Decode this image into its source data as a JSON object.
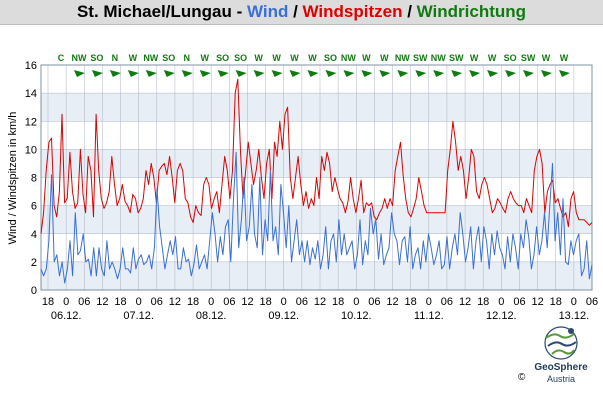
{
  "header": {
    "station": "St. Michael/Lungau",
    "separator": " - ",
    "wind_label": "Wind",
    "slash": " / ",
    "gust_label": "Windspitzen",
    "direction_label": "Windrichtung"
  },
  "colors": {
    "wind": "#3a6fd8",
    "gust": "#e00000",
    "direction": "#127a12",
    "title_text": "#000000",
    "band_light": "#e8eef6",
    "band_white": "#ffffff",
    "grid": "#a8b4c4"
  },
  "chart_data": {
    "type": "line",
    "title": "St. Michael/Lungau - Wind / Windspitzen / Windrichtung",
    "ylabel": "Wind / Windspitzen in km/h",
    "xlabel": "",
    "ylim": [
      0,
      16
    ],
    "yticks": [
      0,
      2,
      4,
      6,
      8,
      10,
      12,
      14,
      16
    ],
    "grid": true,
    "x_hour_ticks": [
      "18",
      "0",
      "06",
      "12",
      "18",
      "0",
      "06",
      "12",
      "18",
      "0",
      "06",
      "12",
      "18",
      "0",
      "06",
      "12",
      "18",
      "0",
      "06",
      "12",
      "18",
      "0",
      "06",
      "12",
      "18",
      "0",
      "06",
      "12",
      "18",
      "0",
      "06"
    ],
    "date_labels": [
      "06.12.",
      "07.12.",
      "08.12.",
      "09.12.",
      "10.12.",
      "11.12.",
      "12.12.",
      "13.12."
    ],
    "wind_directions": [
      "C",
      "NW",
      "SO",
      "N",
      "W",
      "NW",
      "SO",
      "N",
      "W",
      "SO",
      "SO",
      "W",
      "W",
      "W",
      "W",
      "SO",
      "NW",
      "W",
      "W",
      "NW",
      "SW",
      "NW",
      "SW",
      "W",
      "W",
      "SO",
      "SW",
      "W",
      "W"
    ],
    "series": [
      {
        "name": "Windspitzen",
        "values": [
          4,
          5.5,
          8.5,
          10.5,
          10.8,
          6,
          5.2,
          7,
          12.5,
          6.2,
          6.5,
          9.8,
          7,
          5.8,
          6.2,
          10,
          6.8,
          5.5,
          9.5,
          8.5,
          5.2,
          12.5,
          8.5,
          6.5,
          5.8,
          6.2,
          7,
          9.5,
          7.5,
          6,
          6.5,
          7.5,
          6.3,
          6,
          5.5,
          6.8,
          6.5,
          5.5,
          5.8,
          6.5,
          8.5,
          7.5,
          9,
          8,
          6.2,
          8.5,
          8.8,
          9,
          8.2,
          9.5,
          8,
          6.2,
          8.5,
          9,
          8.5,
          6.5,
          6.2,
          5.2,
          4.8,
          6,
          5.5,
          5.3,
          7.5,
          8,
          7.5,
          5.8,
          6.5,
          7,
          5.5,
          7.5,
          9.5,
          8.5,
          6.5,
          8.5,
          14,
          15,
          10,
          6.5,
          8.5,
          10.5,
          9,
          7.5,
          8.5,
          10,
          8,
          6.5,
          9,
          10,
          6.5,
          10.5,
          9.5,
          12,
          10,
          12.5,
          13,
          8,
          6.5,
          8,
          9.5,
          7.5,
          6,
          7,
          5.8,
          6.5,
          6,
          8,
          6.5,
          9.5,
          8.5,
          9.8,
          9,
          7,
          8,
          7.2,
          6.5,
          6.2,
          5.5,
          6.3,
          8,
          6.5,
          5.5,
          6.5,
          7.8,
          5.5,
          6.2,
          6,
          6.2,
          5.2,
          5,
          5.5,
          5.8,
          6.5,
          5.8,
          6.5,
          6,
          8.5,
          9.5,
          10.5,
          8.2,
          6.5,
          5.5,
          5.2,
          5.8,
          6.5,
          8,
          7,
          6,
          5.5,
          5.5,
          5.5,
          5.5,
          5.5,
          5.5,
          5.5,
          5.5,
          8.5,
          10,
          12,
          10.5,
          8.5,
          9.5,
          8.5,
          6.5,
          8,
          10,
          9.5,
          7,
          6.5,
          7.5,
          8,
          7.5,
          6.5,
          5.5,
          5.8,
          6.5,
          6.2,
          5.8,
          5.5,
          6.5,
          7,
          6.5,
          6.2,
          6,
          6,
          5.5,
          6.5,
          6,
          5.5,
          8.5,
          9.5,
          10,
          9,
          5.5,
          7,
          7.5,
          7.8,
          6.2,
          6.5,
          5.8,
          5.2,
          5.5,
          4.5,
          6.5,
          7,
          5.5,
          5,
          5,
          5,
          4.8,
          4.6,
          4.8
        ]
      },
      {
        "name": "Wind",
        "values": [
          1.5,
          1,
          1.5,
          3.5,
          8.2,
          2,
          2.5,
          1,
          2,
          0.5,
          1.5,
          3.5,
          1,
          5.5,
          2.5,
          2.8,
          4,
          2,
          2.2,
          1,
          3,
          1,
          3,
          1.5,
          1,
          3.5,
          1.5,
          2,
          1.5,
          0.8,
          1.5,
          3,
          1.5,
          1.5,
          1.2,
          3,
          1.5,
          2.2,
          2.5,
          1.8,
          2,
          2.5,
          1.5,
          3,
          7.2,
          4.5,
          3,
          1.5,
          2.5,
          3.5,
          2.5,
          3.8,
          1.5,
          1.5,
          3,
          2,
          2.2,
          1,
          1.8,
          3.2,
          1.5,
          2,
          2.5,
          1.5,
          3.5,
          5.5,
          4,
          2,
          3.8,
          2.5,
          4.5,
          5,
          2,
          6.5,
          9.8,
          3,
          5,
          8,
          3.5,
          4.5,
          7.5,
          4,
          3,
          8,
          2.5,
          5,
          3.5,
          8.5,
          3.5,
          4.5,
          2.5,
          7.5,
          5.5,
          3,
          6,
          2,
          3.5,
          5,
          2.5,
          3.5,
          2,
          3.5,
          1.8,
          3,
          2.2,
          3.5,
          1.5,
          2.5,
          4.5,
          1.5,
          3.5,
          4,
          2,
          5,
          2.5,
          4,
          2.5,
          3,
          3.5,
          1.5,
          2.5,
          5,
          1.8,
          3.5,
          2.5,
          5.8,
          4,
          5,
          2.2,
          4,
          1.8,
          2.5,
          3,
          5.5,
          4,
          3.5,
          1.8,
          3.5,
          3.8,
          2,
          4.5,
          1.5,
          2.5,
          3,
          1.5,
          3.5,
          2,
          4,
          3,
          1.8,
          2.5,
          3.5,
          1.5,
          1.8,
          3.8,
          1.5,
          3,
          4,
          2.5,
          5.5,
          4,
          2,
          3,
          4.5,
          1.5,
          3.5,
          4.5,
          2,
          4.5,
          3.5,
          1.5,
          4,
          2.5,
          4.2,
          3,
          2.5,
          1.5,
          3.8,
          2,
          4,
          3,
          1.5,
          4,
          3,
          5,
          3.8,
          1.5,
          2.5,
          4.5,
          2.5,
          3.5,
          5.5,
          3,
          6,
          9,
          3.5,
          5.5,
          2.5,
          6.5,
          2,
          1.8,
          3.5,
          2.5,
          3.5,
          4,
          1,
          1.5,
          3.5,
          0.8,
          1.8
        ]
      }
    ]
  }
}
